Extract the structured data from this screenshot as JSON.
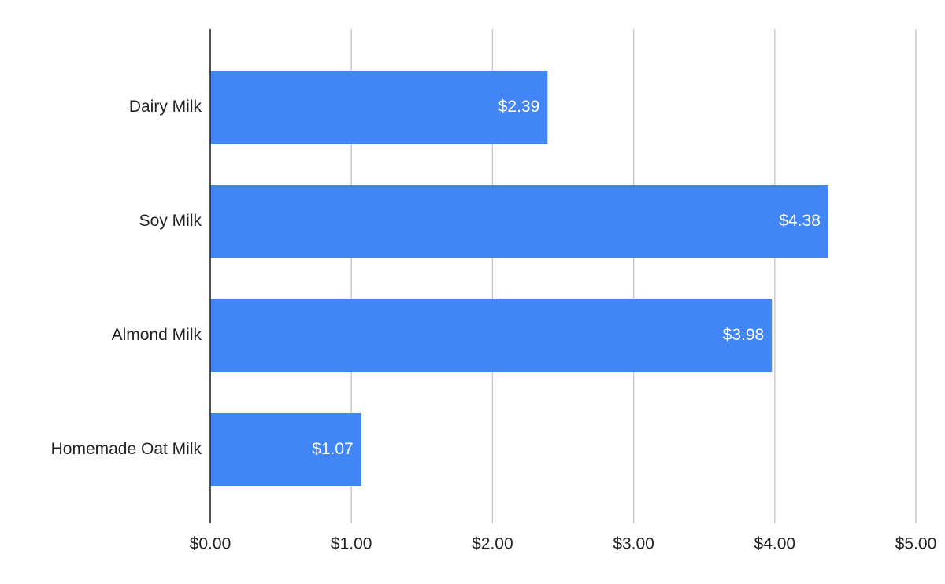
{
  "chart_data": {
    "type": "bar",
    "orientation": "horizontal",
    "categories": [
      "Dairy Milk",
      "Soy Milk",
      "Almond Milk",
      "Homemade Oat Milk"
    ],
    "values": [
      2.39,
      4.38,
      3.98,
      1.07
    ],
    "value_labels": [
      "$2.39",
      "$4.38",
      "$3.98",
      "$1.07"
    ],
    "color": "#4285f4",
    "xlim": [
      0,
      5
    ],
    "xticks": [
      {
        "value": 0,
        "label": "$0.00"
      },
      {
        "value": 1,
        "label": "$1.00"
      },
      {
        "value": 2,
        "label": "$2.00"
      },
      {
        "value": 3,
        "label": "$3.00"
      },
      {
        "value": 4,
        "label": "$4.00"
      },
      {
        "value": 5,
        "label": "$5.00"
      }
    ],
    "grid": true
  }
}
